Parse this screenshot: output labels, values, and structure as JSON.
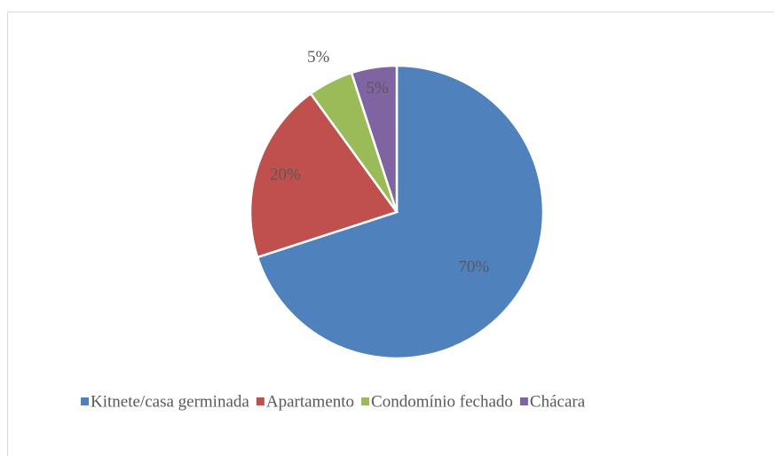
{
  "chart_data": {
    "type": "pie",
    "categories": [
      "Kitnete/casa germinada",
      "Apartamento",
      "Condomínio fechado",
      "Chácara"
    ],
    "values": [
      70,
      20,
      5,
      5
    ],
    "value_labels": [
      "70%",
      "20%",
      "5%",
      "5%"
    ],
    "colors": [
      "#4f81bd",
      "#c0504d",
      "#9bbb59",
      "#8064a2"
    ],
    "legend": "bottom"
  }
}
